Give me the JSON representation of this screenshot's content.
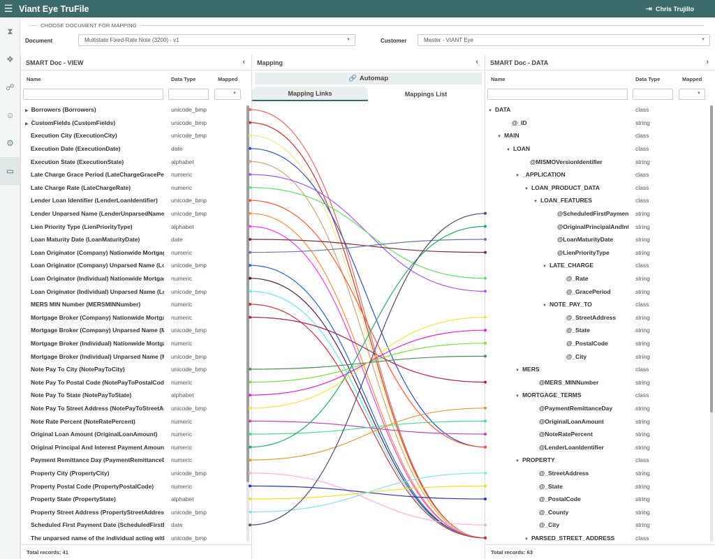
{
  "app": {
    "title": "Viant Eye TruFile",
    "user": "Chris Trujillo"
  },
  "doc_section": {
    "legend": "CHOOSE DOCUMENT FOR MAPPING",
    "document_label": "Document",
    "document_value": "Multistate Fixed-Rate Note (3200)  - v1",
    "customer_label": "Customer",
    "customer_value": "Master - VIANT Eye"
  },
  "left_panel": {
    "title": "SMART Doc - VIEW",
    "col_name": "Name",
    "col_type": "Data Type",
    "col_mapped": "Mapped",
    "footer": "Total records: 41",
    "rows": [
      {
        "name": "Borrowers (Borrowers)",
        "type": "unicode_bmp",
        "expand": true
      },
      {
        "name": "CustomFields (CustomFields)",
        "type": "unicode_bmp",
        "expand": true
      },
      {
        "name": "Execution City (ExecutionCity)",
        "type": "unicode_bmp"
      },
      {
        "name": "Execution Date (ExecutionDate)",
        "type": "date"
      },
      {
        "name": "Execution State (ExecutionState)",
        "type": "alphabet"
      },
      {
        "name": "Late Charge Grace Period (LateChargeGracePeriod)",
        "type": "numeric"
      },
      {
        "name": "Late Charge Rate (LateChargeRate)",
        "type": "numeric"
      },
      {
        "name": "Lender Loan Identifier (LenderLoanIdentifier)",
        "type": "unicode_bmp"
      },
      {
        "name": "Lender Unparsed Name (LenderUnparsedName)",
        "type": "unicode_bmp"
      },
      {
        "name": "Lien Priority Type (LienPriorityType)",
        "type": "alphabet"
      },
      {
        "name": "Loan Maturity Date (LoanMaturityDate)",
        "type": "date"
      },
      {
        "name": "Loan Originator (Company) Nationwide Mortgage Licensing",
        "type": "numeric"
      },
      {
        "name": "Loan Originator (Company) Unparsed Name (LoanOriginator",
        "type": "unicode_bmp"
      },
      {
        "name": "Loan Originator (Individual) Nationwide Mortgage Licensing",
        "type": "numeric"
      },
      {
        "name": "Loan Originator (Individual) Unparsed Name (LoanOriginator",
        "type": "unicode_bmp"
      },
      {
        "name": "MERS MIN Number (MERSMINNumber)",
        "type": "numeric"
      },
      {
        "name": "Mortgage Broker (Company) Nationwide Mortgage Licensing",
        "type": "numeric"
      },
      {
        "name": "Mortgage Broker (Company) Unparsed Name (MortgageBroker",
        "type": "unicode_bmp"
      },
      {
        "name": "Mortgage Broker (Individual) Nationwide Mortgage Licensing",
        "type": "numeric"
      },
      {
        "name": "Mortgage Broker (Individual) Unparsed Name (MortgageBroker",
        "type": "unicode_bmp"
      },
      {
        "name": "Note Pay To City (NotePayToCity)",
        "type": "unicode_bmp"
      },
      {
        "name": "Note Pay To Postal Code (NotePayToPostalCode)",
        "type": "numeric"
      },
      {
        "name": "Note Pay To State (NotePayToState)",
        "type": "alphabet"
      },
      {
        "name": "Note Pay To Street Address (NotePayToStreetAddress)",
        "type": "unicode_bmp"
      },
      {
        "name": "Note Rate Percent (NoteRatePercent)",
        "type": "numeric"
      },
      {
        "name": "Original Loan Amount (OriginalLoanAmount)",
        "type": "numeric"
      },
      {
        "name": "Original Principal And Interest Payment Amount (OriginalPI",
        "type": "numeric"
      },
      {
        "name": "Payment Remittance Day (PaymentRemittanceDay)",
        "type": "numeric"
      },
      {
        "name": "Property City (PropertyCity)",
        "type": "unicode_bmp"
      },
      {
        "name": "Property Postal Code (PropertyPostalCode)",
        "type": "numeric"
      },
      {
        "name": "Property State (PropertyState)",
        "type": "alphabet"
      },
      {
        "name": "Property Street Address (PropertyStreetAddress)",
        "type": "unicode_bmp"
      },
      {
        "name": "Scheduled First Payment Date (ScheduledFirstPaymentDate)",
        "type": "date"
      },
      {
        "name": "The unparsed name of the individual acting with Power of",
        "type": "unicode_bmp"
      }
    ]
  },
  "mapping_panel": {
    "title": "Mapping",
    "automap": "Automap",
    "tab_links": "Mapping Links",
    "tab_list": "Mappings List"
  },
  "right_panel": {
    "title": "SMART Doc - DATA",
    "col_name": "Name",
    "col_type": "Data Type",
    "col_mapped": "Mapped",
    "footer": "Total records: 63",
    "rows": [
      {
        "name": "DATA",
        "type": "class",
        "indent": 0,
        "expand": true
      },
      {
        "name": "@_ID",
        "type": "string",
        "indent": 2
      },
      {
        "name": "MAIN",
        "type": "class",
        "indent": 1,
        "expand": true
      },
      {
        "name": "LOAN",
        "type": "class",
        "indent": 2,
        "expand": true
      },
      {
        "name": "@MISMOVersionIdentifier",
        "type": "string",
        "indent": 4
      },
      {
        "name": "_APPLICATION",
        "type": "class",
        "indent": 3,
        "expand": true
      },
      {
        "name": "LOAN_PRODUCT_DATA",
        "type": "class",
        "indent": 4,
        "expand": true
      },
      {
        "name": "LOAN_FEATURES",
        "type": "class",
        "indent": 5,
        "expand": true
      },
      {
        "name": "@ScheduledFirstPaymentDate",
        "type": "string",
        "indent": 7
      },
      {
        "name": "@OriginalPrincipalAndInterest",
        "type": "string",
        "indent": 7
      },
      {
        "name": "@LoanMaturityDate",
        "type": "string",
        "indent": 7
      },
      {
        "name": "@LienPriorityType",
        "type": "string",
        "indent": 7
      },
      {
        "name": "LATE_CHARGE",
        "type": "class",
        "indent": 6,
        "expand": true
      },
      {
        "name": "@_Rate",
        "type": "string",
        "indent": 8
      },
      {
        "name": "@_GracePeriod",
        "type": "string",
        "indent": 8
      },
      {
        "name": "NOTE_PAY_TO",
        "type": "class",
        "indent": 6,
        "expand": true
      },
      {
        "name": "@_StreetAddress",
        "type": "string",
        "indent": 8
      },
      {
        "name": "@_State",
        "type": "string",
        "indent": 8
      },
      {
        "name": "@_PostalCode",
        "type": "string",
        "indent": 8
      },
      {
        "name": "@_City",
        "type": "string",
        "indent": 8
      },
      {
        "name": "MERS",
        "type": "class",
        "indent": 3,
        "expand": true
      },
      {
        "name": "@MERS_MINNumber",
        "type": "string",
        "indent": 5
      },
      {
        "name": "MORTGAGE_TERMS",
        "type": "class",
        "indent": 3,
        "expand": true
      },
      {
        "name": "@PaymentRemittanceDay",
        "type": "string",
        "indent": 5
      },
      {
        "name": "@OriginalLoanAmount",
        "type": "string",
        "indent": 5
      },
      {
        "name": "@NoteRatePercent",
        "type": "string",
        "indent": 5
      },
      {
        "name": "@LenderLoanIdentifier",
        "type": "string",
        "indent": 5
      },
      {
        "name": "PROPERTY",
        "type": "class",
        "indent": 3,
        "expand": true
      },
      {
        "name": "@_StreetAddress",
        "type": "string",
        "indent": 5
      },
      {
        "name": "@_State",
        "type": "string",
        "indent": 5
      },
      {
        "name": "@_PostalCode",
        "type": "string",
        "indent": 5
      },
      {
        "name": "@_County",
        "type": "string",
        "indent": 5
      },
      {
        "name": "@_City",
        "type": "string",
        "indent": 5
      },
      {
        "name": "PARSED_STREET_ADDRESS",
        "type": "class",
        "indent": 4,
        "expand": true
      }
    ]
  },
  "links": [
    {
      "from": 0,
      "to": 33,
      "color": "#e06c5a"
    },
    {
      "from": 1,
      "to": 33,
      "color": "#c0392b"
    },
    {
      "from": 2,
      "to": 33,
      "color": "#f0e68c"
    },
    {
      "from": 3,
      "to": 26,
      "color": "#2b4fbf"
    },
    {
      "from": 4,
      "to": 33,
      "color": "#d2a679"
    },
    {
      "from": 5,
      "to": 14,
      "color": "#a855f7"
    },
    {
      "from": 6,
      "to": 13,
      "color": "#66dd66"
    },
    {
      "from": 7,
      "to": 26,
      "color": "#ff5533"
    },
    {
      "from": 8,
      "to": 33,
      "color": "#ff8c42"
    },
    {
      "from": 9,
      "to": 33,
      "color": "#ee44ee"
    },
    {
      "from": 10,
      "to": 11,
      "color": "#7b2d2d"
    },
    {
      "from": 11,
      "to": 10,
      "color": "#6677aa"
    },
    {
      "from": 12,
      "to": 33,
      "color": "#2266cc"
    },
    {
      "from": 13,
      "to": 33,
      "color": "#4a1a4a"
    },
    {
      "from": 14,
      "to": 33,
      "color": "#66e6ee"
    },
    {
      "from": 15,
      "to": 33,
      "color": "#cc3333"
    },
    {
      "from": 16,
      "to": 21,
      "color": "#aa2255"
    },
    {
      "from": 20,
      "to": 19,
      "color": "#558855"
    },
    {
      "from": 21,
      "to": 18,
      "color": "#77dd44"
    },
    {
      "from": 22,
      "to": 17,
      "color": "#dd22dd"
    },
    {
      "from": 23,
      "to": 16,
      "color": "#f5e050"
    },
    {
      "from": 24,
      "to": 25,
      "color": "#bb44bb"
    },
    {
      "from": 25,
      "to": 24,
      "color": "#44dd88"
    },
    {
      "from": 26,
      "to": 9,
      "color": "#22aa66"
    },
    {
      "from": 27,
      "to": 23,
      "color": "#dd9933"
    },
    {
      "from": 28,
      "to": 32,
      "color": "#ffaadd"
    },
    {
      "from": 29,
      "to": 30,
      "color": "#2233bb"
    },
    {
      "from": 30,
      "to": 29,
      "color": "#eedd22"
    },
    {
      "from": 31,
      "to": 28,
      "color": "#88ddee"
    },
    {
      "from": 32,
      "to": 8,
      "color": "#554477"
    }
  ]
}
